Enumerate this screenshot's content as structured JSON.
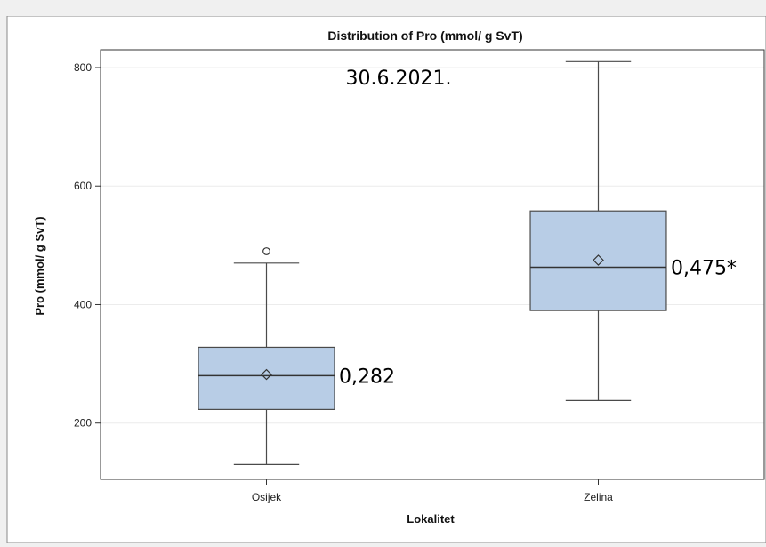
{
  "chart_data": {
    "type": "boxplot",
    "title": "Distribution of Pro (mmol/ g SvT)",
    "xlabel": "Lokalitet",
    "ylabel": "Pro (mmol/ g SvT)",
    "ylim": [
      105,
      830
    ],
    "yticks": [
      200,
      400,
      600,
      800
    ],
    "categories": [
      "Osijek",
      "Zelina"
    ],
    "boxes": [
      {
        "category": "Osijek",
        "whisker_low": 130,
        "q1": 223,
        "median": 280,
        "mean": 282,
        "q3": 328,
        "whisker_high": 470,
        "outliers": [
          490
        ],
        "label": "0,282"
      },
      {
        "category": "Zelina",
        "whisker_low": 238,
        "q1": 390,
        "median": 463,
        "mean": 475,
        "q3": 558,
        "whisker_high": 810,
        "outliers": [],
        "label": "0,475*"
      }
    ],
    "annotation": "30.6.2021.",
    "grid": true,
    "colors": {
      "box_fill": "#b8cde6",
      "box_stroke": "#4a4a4a",
      "grid": "#ececec"
    }
  }
}
